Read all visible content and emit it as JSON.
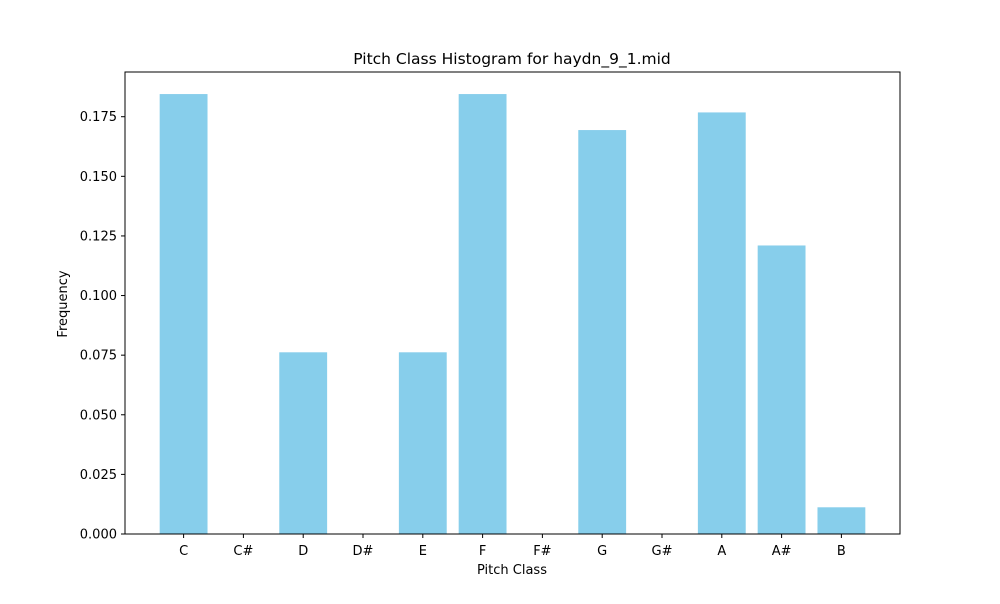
{
  "chart_data": {
    "type": "bar",
    "title": "Pitch Class Histogram for haydn_9_1.mid",
    "xlabel": "Pitch Class",
    "ylabel": "Frequency",
    "categories": [
      "C",
      "C#",
      "D",
      "D#",
      "E",
      "F",
      "F#",
      "G",
      "G#",
      "A",
      "A#",
      "B"
    ],
    "values": [
      0.1845,
      0,
      0.0762,
      0,
      0.0762,
      0.1845,
      0,
      0.1694,
      0,
      0.1768,
      0.121,
      0.0112
    ],
    "ylim": [
      0,
      0.19375
    ],
    "yticks": [
      "0.000",
      "0.025",
      "0.050",
      "0.075",
      "0.100",
      "0.125",
      "0.150",
      "0.175"
    ],
    "ytick_values": [
      0,
      0.025,
      0.05,
      0.075,
      0.1,
      0.125,
      0.15,
      0.175
    ],
    "grid": false,
    "legend": "none",
    "bar_color": "#87ceeb",
    "axis_color": "#000000"
  }
}
